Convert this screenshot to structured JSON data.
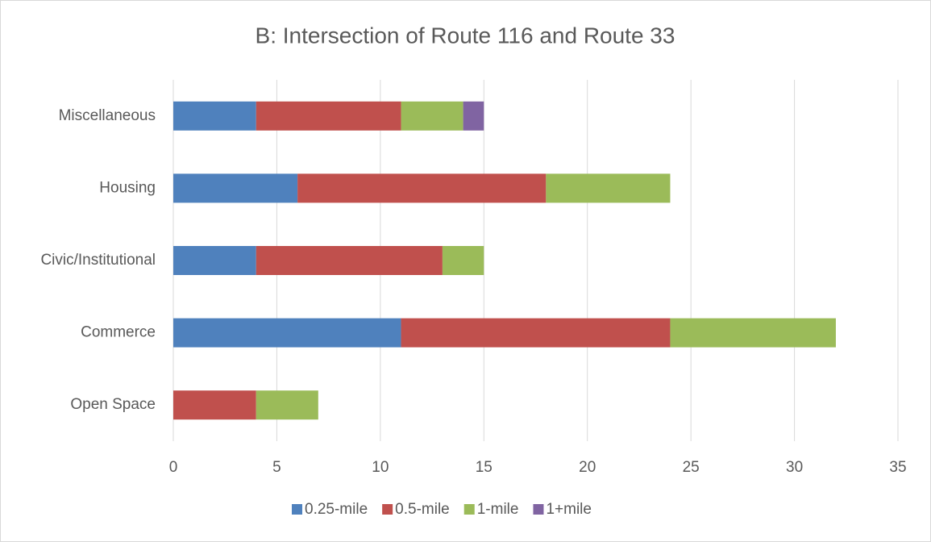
{
  "chart_data": {
    "type": "stacked_barh",
    "title": "B: Intersection of Route 116 and Route 33",
    "categories": [
      "Open Space",
      "Commerce",
      "Civic/Institutional",
      "Housing",
      "Miscellaneous"
    ],
    "series": [
      {
        "name": "0.25-mile",
        "color": "#4f81bd",
        "values": [
          0,
          11,
          4,
          6,
          4
        ]
      },
      {
        "name": "0.5-mile",
        "color": "#c0504d",
        "values": [
          4,
          13,
          9,
          12,
          7
        ]
      },
      {
        "name": "1-mile",
        "color": "#9bbb59",
        "values": [
          3,
          8,
          2,
          6,
          3
        ]
      },
      {
        "name": "1+mile",
        "color": "#8064a2",
        "values": [
          0,
          0,
          0,
          0,
          1
        ]
      }
    ],
    "xlim": [
      0,
      35
    ],
    "xticks": [
      0,
      5,
      10,
      15,
      20,
      25,
      30,
      35
    ],
    "grid": true,
    "legend": "bottom"
  }
}
